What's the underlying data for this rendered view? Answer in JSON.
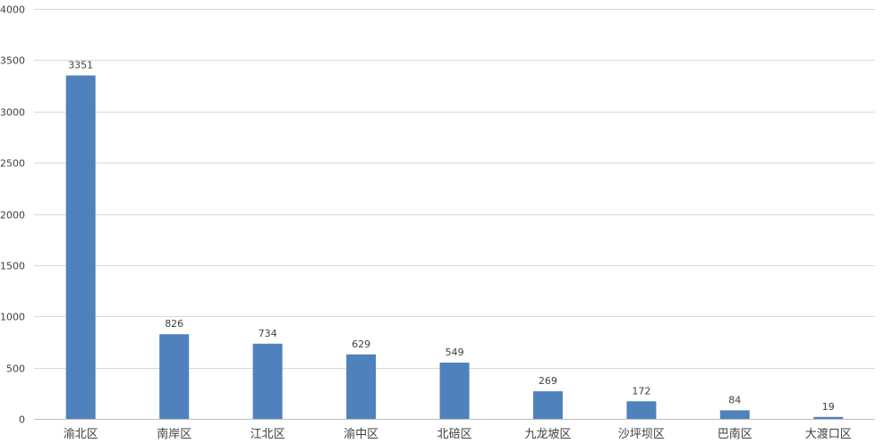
{
  "chart_data": {
    "type": "bar",
    "categories": [
      "渝北区",
      "南岸区",
      "江北区",
      "渝中区",
      "北碚区",
      "九龙坡区",
      "沙坪坝区",
      "巴南区",
      "大渡口区"
    ],
    "values": [
      3351,
      826,
      734,
      629,
      549,
      269,
      172,
      84,
      19
    ],
    "ylim": [
      0,
      4000
    ],
    "yticks": [
      0,
      500,
      1000,
      1500,
      2000,
      2500,
      3000,
      3500,
      4000
    ],
    "ytick_labels": [
      "0",
      "500",
      "1000",
      "1500",
      "2000",
      "2500",
      "3000",
      "3500",
      "4000"
    ],
    "data_labels": [
      "3351",
      "826",
      "734",
      "629",
      "549",
      "269",
      "172",
      "84",
      "19"
    ],
    "grid": true,
    "bar_color": "#4f81bd",
    "legend": "none"
  }
}
